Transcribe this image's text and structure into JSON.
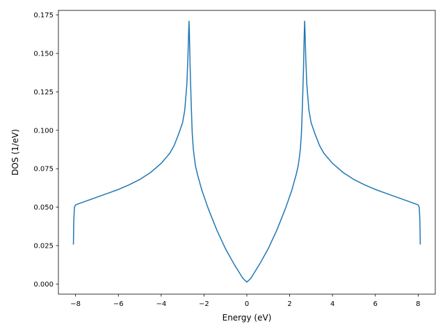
{
  "chart_data": {
    "type": "line",
    "title": "",
    "xlabel": "Energy (eV)",
    "ylabel": "DOS (1/eV)",
    "xlim": [
      -8.8,
      8.8
    ],
    "ylim": [
      -0.0066,
      0.178
    ],
    "xticks": [
      -8,
      -6,
      -4,
      -2,
      0,
      2,
      4,
      6,
      8
    ],
    "xtick_labels": [
      "−8",
      "−6",
      "−4",
      "−2",
      "0",
      "2",
      "4",
      "6",
      "8"
    ],
    "yticks": [
      0.0,
      0.025,
      0.05,
      0.075,
      0.1,
      0.125,
      0.15,
      0.175
    ],
    "ytick_labels": [
      "0.000",
      "0.025",
      "0.050",
      "0.075",
      "0.100",
      "0.125",
      "0.150",
      "0.175"
    ],
    "grid": false,
    "legend": "none",
    "series": [
      {
        "color": "#1f77b4",
        "x": [
          -8.1,
          -8.08,
          -8.05,
          -8.0,
          -7.9,
          -7.5,
          -7.0,
          -6.5,
          -6.0,
          -5.5,
          -5.0,
          -4.5,
          -4.0,
          -3.6,
          -3.4,
          -3.2,
          -3.0,
          -2.9,
          -2.8,
          -2.75,
          -2.72,
          -2.7,
          -2.68,
          -2.65,
          -2.6,
          -2.55,
          -2.5,
          -2.45,
          -2.4,
          -2.3,
          -2.2,
          -2.1,
          -2.0,
          -1.8,
          -1.6,
          -1.4,
          -1.2,
          -1.0,
          -0.8,
          -0.6,
          -0.4,
          -0.2,
          -0.1,
          0.0,
          0.1,
          0.2,
          0.4,
          0.6,
          0.8,
          1.0,
          1.2,
          1.4,
          1.6,
          1.8,
          2.0,
          2.1,
          2.2,
          2.3,
          2.4,
          2.45,
          2.5,
          2.55,
          2.6,
          2.65,
          2.68,
          2.7,
          2.72,
          2.75,
          2.8,
          2.9,
          3.0,
          3.2,
          3.4,
          3.6,
          4.0,
          4.5,
          5.0,
          5.5,
          6.0,
          6.5,
          7.0,
          7.5,
          7.9,
          8.0,
          8.05,
          8.08,
          8.1
        ],
        "y": [
          0.026,
          0.042,
          0.05,
          0.0515,
          0.052,
          0.054,
          0.0565,
          0.059,
          0.0615,
          0.0645,
          0.068,
          0.0725,
          0.0785,
          0.085,
          0.09,
          0.097,
          0.105,
          0.113,
          0.13,
          0.148,
          0.163,
          0.171,
          0.162,
          0.142,
          0.118,
          0.098,
          0.088,
          0.082,
          0.077,
          0.071,
          0.066,
          0.061,
          0.057,
          0.049,
          0.042,
          0.035,
          0.029,
          0.023,
          0.018,
          0.013,
          0.0085,
          0.004,
          0.0025,
          0.0013,
          0.0025,
          0.004,
          0.0085,
          0.013,
          0.018,
          0.023,
          0.029,
          0.035,
          0.042,
          0.049,
          0.057,
          0.061,
          0.066,
          0.071,
          0.077,
          0.082,
          0.088,
          0.098,
          0.118,
          0.142,
          0.162,
          0.171,
          0.163,
          0.148,
          0.13,
          0.113,
          0.105,
          0.097,
          0.09,
          0.085,
          0.0785,
          0.0725,
          0.068,
          0.0645,
          0.0615,
          0.059,
          0.0565,
          0.054,
          0.052,
          0.0515,
          0.05,
          0.042,
          0.026
        ]
      }
    ]
  }
}
